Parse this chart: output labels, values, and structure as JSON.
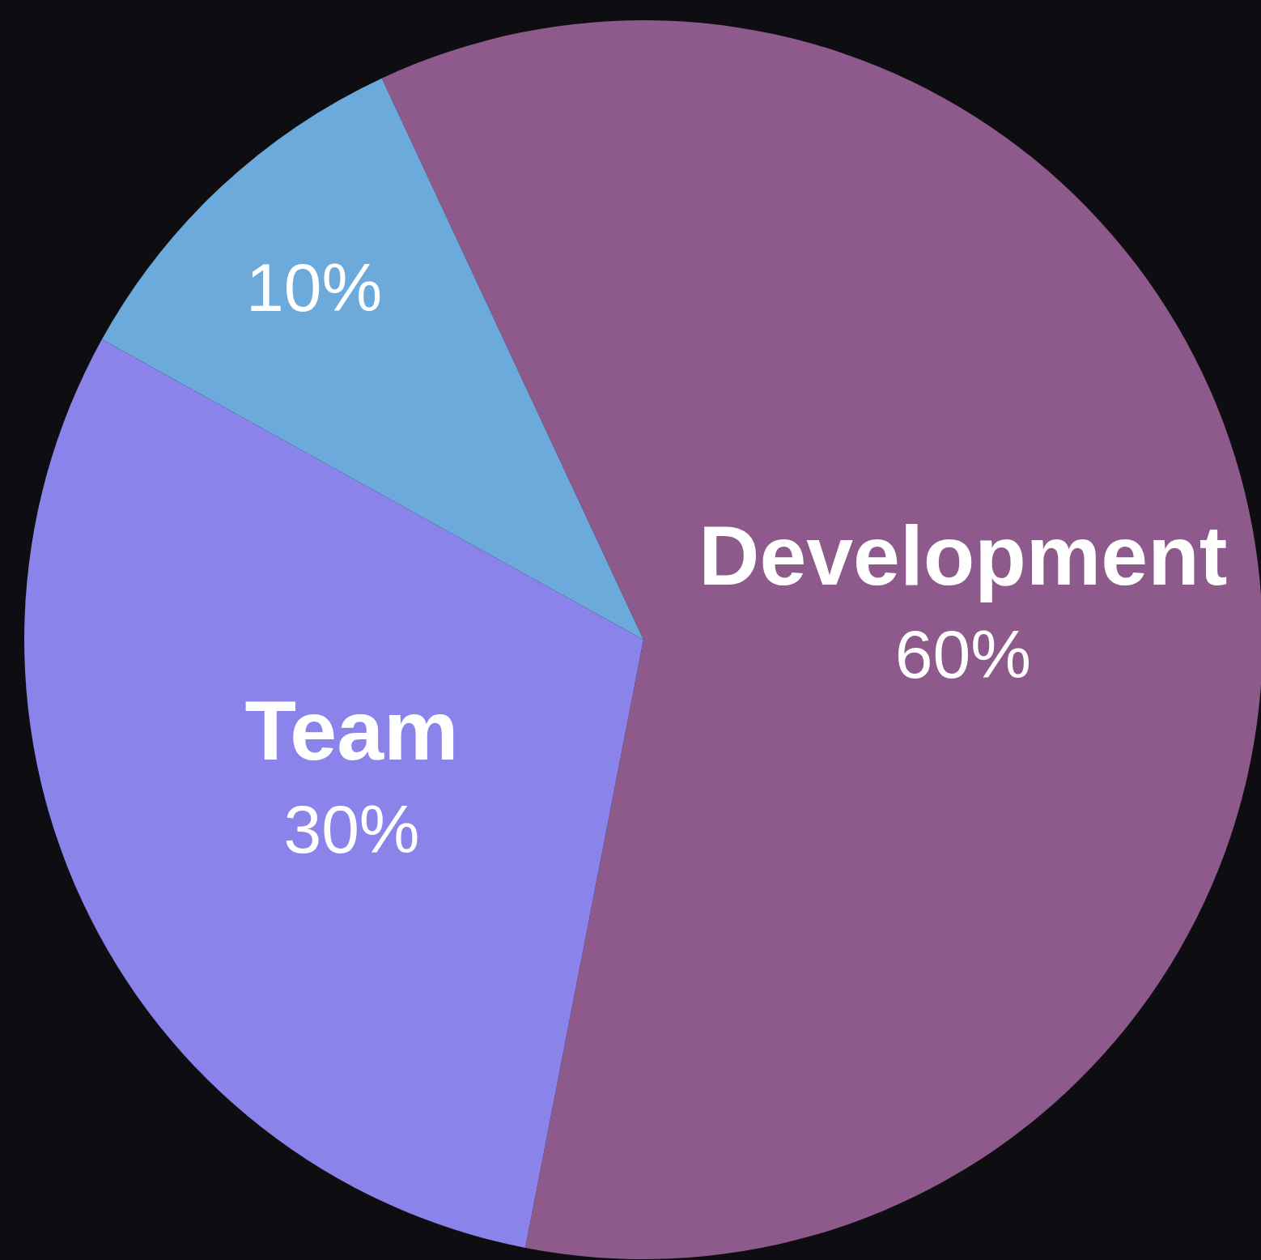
{
  "chart_data": {
    "type": "pie",
    "categories": [
      "Development",
      "Team",
      null
    ],
    "values": [
      60,
      30,
      10
    ],
    "colors": [
      "#8e5a8b",
      "#8983ea",
      "#6caadb"
    ],
    "value_labels": [
      "60%",
      "30%",
      "10%"
    ]
  }
}
